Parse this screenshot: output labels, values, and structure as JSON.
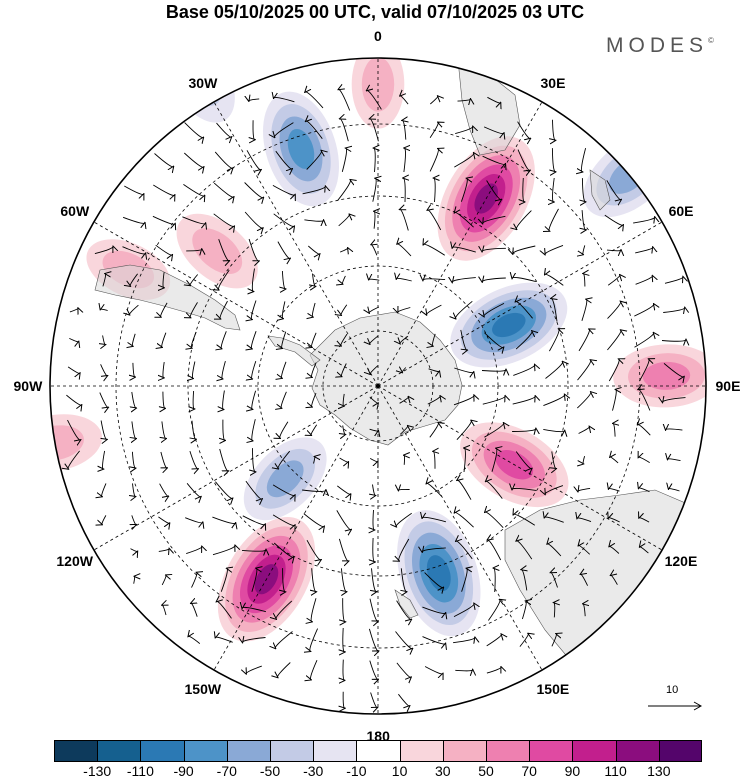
{
  "header": {
    "title": "Base 05/10/2025 00 UTC, valid 07/10/2025 03 UTC",
    "brand": "MODES",
    "brand_mark": "©"
  },
  "map": {
    "projection": "south-polar-stereographic",
    "longitude_labels": [
      "0",
      "30E",
      "60E",
      "90E",
      "120E",
      "150E",
      "180",
      "150W",
      "120W",
      "90W",
      "60W",
      "30W"
    ],
    "vector_reference": {
      "label": "10",
      "magnitude": 10
    },
    "anomaly_centers": [
      {
        "sign": "positive",
        "lon": 0,
        "lat": -44,
        "magnitude": 30
      },
      {
        "sign": "negative",
        "lon": -18,
        "lat": -52,
        "magnitude": 80
      },
      {
        "sign": "positive",
        "lon": 30,
        "lat": -57,
        "magnitude": 110
      },
      {
        "sign": "negative",
        "lon": 50,
        "lat": -40,
        "magnitude": 60
      },
      {
        "sign": "negative",
        "lon": 65,
        "lat": -68,
        "magnitude": 90
      },
      {
        "sign": "positive",
        "lon": 88,
        "lat": -46,
        "magnitude": 60
      },
      {
        "sign": "positive",
        "lon": 120,
        "lat": -66,
        "magnitude": 80
      },
      {
        "sign": "negative",
        "lon": 162,
        "lat": -60,
        "magnitude": 100
      },
      {
        "sign": "positive",
        "lon": -150,
        "lat": -56,
        "magnitude": 110
      },
      {
        "sign": "negative",
        "lon": -135,
        "lat": -70,
        "magnitude": 50
      },
      {
        "sign": "positive",
        "lon": -50,
        "lat": -58,
        "magnitude": 40
      },
      {
        "sign": "positive",
        "lon": -65,
        "lat": -48,
        "magnitude": 30
      },
      {
        "sign": "positive",
        "lon": -100,
        "lat": -40,
        "magnitude": 40
      },
      {
        "sign": "negative",
        "lon": -30,
        "lat": -36,
        "magnitude": 40
      }
    ]
  },
  "colorbar": {
    "tick_labels": [
      "-130",
      "-110",
      "-90",
      "-70",
      "-50",
      "-30",
      "-10",
      "10",
      "30",
      "50",
      "70",
      "90",
      "110",
      "130"
    ],
    "colors": [
      "#0d3a5c",
      "#15608f",
      "#2b79b4",
      "#4d93c8",
      "#8aa9d6",
      "#c3cbe6",
      "#e6e4f2",
      "#ffffff",
      "#f9d6dc",
      "#f5b1c3",
      "#ee80b0",
      "#e04aa2",
      "#c21f8d",
      "#8b0d7e",
      "#54056b"
    ]
  }
}
